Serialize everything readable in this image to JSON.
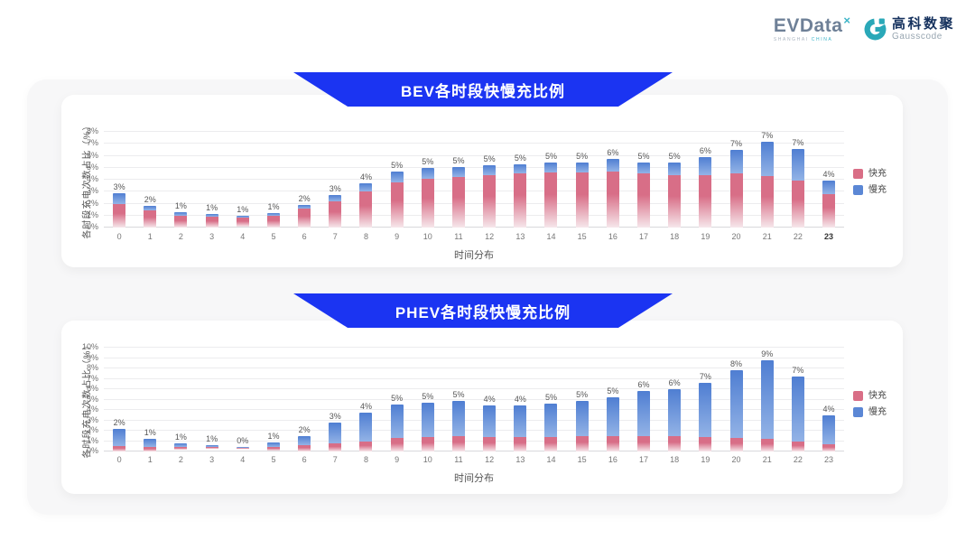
{
  "logo": {
    "evdata": {
      "name": "EVData",
      "superscript": "×",
      "tagline_left": "SHANGHAI",
      "tagline_right": "CHINA"
    },
    "gausscode": {
      "cn": "高科数聚",
      "en": "Gausscode"
    }
  },
  "colors": {
    "banner_blue": "#1b34f2",
    "fast_pink": "#d96e86",
    "slow_blue": "#5b87d5",
    "panel_bg": "#f7f7f8",
    "card_bg": "#ffffff",
    "logo_teal": "#2aa8b8"
  },
  "chart_data": [
    {
      "type": "bar",
      "stacked": true,
      "title": "BEV各时段快慢充比例",
      "xlabel": "时间分布",
      "ylabel": "各时段充电次数占比（%）",
      "ylim": [
        0,
        8
      ],
      "ytick_step": 1,
      "ytick_suffix": "%",
      "grid": true,
      "legend_position": "right",
      "categories": [
        "0",
        "1",
        "2",
        "3",
        "4",
        "5",
        "6",
        "7",
        "8",
        "9",
        "10",
        "11",
        "12",
        "13",
        "14",
        "15",
        "16",
        "17",
        "18",
        "19",
        "20",
        "21",
        "22",
        "23"
      ],
      "emphasized_category": "23",
      "series": [
        {
          "name": "快充",
          "legend_color": "#d96e86",
          "color_top": "#d86e87",
          "color_bottom": "#f6e7eb",
          "values": [
            2.0,
            1.4,
            1.0,
            0.9,
            0.8,
            1.0,
            1.6,
            2.2,
            3.0,
            3.8,
            4.1,
            4.2,
            4.4,
            4.5,
            4.6,
            4.6,
            4.7,
            4.5,
            4.4,
            4.4,
            4.5,
            4.3,
            3.9,
            2.8
          ]
        },
        {
          "name": "慢充",
          "legend_color": "#5b87d5",
          "color_top": "#4f7ed2",
          "color_bottom": "#93b3e6",
          "values": [
            0.9,
            0.45,
            0.3,
            0.25,
            0.15,
            0.2,
            0.3,
            0.5,
            0.7,
            0.85,
            0.9,
            0.85,
            0.8,
            0.8,
            0.85,
            0.85,
            1.0,
            0.95,
            1.05,
            1.5,
            2.0,
            2.9,
            2.7,
            1.1
          ]
        }
      ],
      "total_labels": [
        "3%",
        "2%",
        "1%",
        "1%",
        "1%",
        "1%",
        "2%",
        "3%",
        "4%",
        "5%",
        "5%",
        "5%",
        "5%",
        "5%",
        "5%",
        "5%",
        "6%",
        "5%",
        "5%",
        "6%",
        "7%",
        "7%",
        "7%",
        "4%"
      ]
    },
    {
      "type": "bar",
      "stacked": true,
      "title": "PHEV各时段快慢充比例",
      "xlabel": "时间分布",
      "ylabel": "各时段充电次数占比（%）",
      "ylim": [
        0,
        10
      ],
      "ytick_step": 1,
      "ytick_suffix": "%",
      "grid": true,
      "legend_position": "right",
      "categories": [
        "0",
        "1",
        "2",
        "3",
        "4",
        "5",
        "6",
        "7",
        "8",
        "9",
        "10",
        "11",
        "12",
        "13",
        "14",
        "15",
        "16",
        "17",
        "18",
        "19",
        "20",
        "21",
        "22",
        "23"
      ],
      "series": [
        {
          "name": "快充",
          "legend_color": "#d96e86",
          "color_top": "#d86e87",
          "color_bottom": "#f6e7eb",
          "values": [
            0.5,
            0.4,
            0.35,
            0.3,
            0.25,
            0.35,
            0.6,
            0.8,
            1.0,
            1.3,
            1.4,
            1.5,
            1.4,
            1.4,
            1.4,
            1.5,
            1.5,
            1.5,
            1.5,
            1.4,
            1.3,
            1.2,
            1.0,
            0.7
          ]
        },
        {
          "name": "慢充",
          "legend_color": "#5b87d5",
          "color_top": "#4f7ed2",
          "color_bottom": "#93b3e6",
          "values": [
            1.7,
            0.8,
            0.45,
            0.3,
            0.2,
            0.5,
            0.9,
            2.0,
            2.7,
            3.2,
            3.3,
            3.4,
            3.0,
            3.0,
            3.2,
            3.4,
            3.7,
            4.3,
            4.5,
            5.2,
            6.5,
            7.6,
            6.2,
            2.8
          ]
        }
      ],
      "total_labels": [
        "2%",
        "1%",
        "1%",
        "1%",
        "0%",
        "1%",
        "2%",
        "3%",
        "4%",
        "5%",
        "5%",
        "5%",
        "4%",
        "4%",
        "5%",
        "5%",
        "5%",
        "6%",
        "6%",
        "7%",
        "8%",
        "9%",
        "7%",
        "4%"
      ]
    }
  ]
}
